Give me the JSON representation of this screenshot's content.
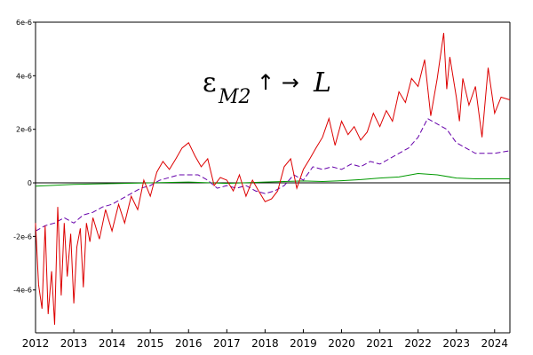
{
  "chart_data": {
    "type": "line",
    "title": "",
    "xlabel": "",
    "ylabel": "",
    "xlim": [
      2012.0,
      2024.4
    ],
    "ylim": [
      -5.6e-06,
      6e-06
    ],
    "yticks": [
      {
        "value": 6e-06,
        "label": "6e-6"
      },
      {
        "value": 4e-06,
        "label": "4e-6"
      },
      {
        "value": 2e-06,
        "label": "2e-6"
      },
      {
        "value": 0,
        "label": "0"
      },
      {
        "value": -2e-06,
        "label": "-2e-6"
      },
      {
        "value": -4e-06,
        "label": "-4e-6"
      }
    ],
    "xticks": [
      "2012",
      "2013",
      "2014",
      "2015",
      "2016",
      "2017",
      "2018",
      "2019",
      "2020",
      "2021",
      "2022",
      "2023",
      "2024"
    ],
    "annotation": {
      "symbol": "ε",
      "subscript": "M2",
      "arrow": "↑ →",
      "target": "L"
    },
    "grid": false,
    "legend": "none",
    "series": [
      {
        "color": "#dd0000",
        "style": "solid",
        "x": [
          2012.0,
          2012.08,
          2012.17,
          2012.25,
          2012.33,
          2012.42,
          2012.5,
          2012.58,
          2012.67,
          2012.75,
          2012.83,
          2012.92,
          2013.0,
          2013.08,
          2013.17,
          2013.25,
          2013.33,
          2013.42,
          2013.5,
          2013.67,
          2013.83,
          2014.0,
          2014.17,
          2014.33,
          2014.5,
          2014.67,
          2014.83,
          2015.0,
          2015.17,
          2015.33,
          2015.5,
          2015.67,
          2015.83,
          2016.0,
          2016.17,
          2016.33,
          2016.5,
          2016.67,
          2016.83,
          2017.0,
          2017.17,
          2017.33,
          2017.5,
          2017.67,
          2017.83,
          2018.0,
          2018.17,
          2018.33,
          2018.5,
          2018.67,
          2018.83,
          2019.0,
          2019.17,
          2019.33,
          2019.5,
          2019.67,
          2019.83,
          2020.0,
          2020.17,
          2020.33,
          2020.5,
          2020.67,
          2020.83,
          2021.0,
          2021.17,
          2021.33,
          2021.5,
          2021.67,
          2021.83,
          2022.0,
          2022.17,
          2022.33,
          2022.5,
          2022.67,
          2022.75,
          2022.83,
          2023.0,
          2023.08,
          2023.17,
          2023.33,
          2023.5,
          2023.67,
          2023.83,
          2024.0,
          2024.17,
          2024.4
        ],
        "y": [
          -1.5e-06,
          -3.8e-06,
          -4.7e-06,
          -1.6e-06,
          -4.9e-06,
          -3.3e-06,
          -5.3e-06,
          -9e-07,
          -4.2e-06,
          -1.5e-06,
          -3.5e-06,
          -1.9e-06,
          -4.5e-06,
          -2.4e-06,
          -1.7e-06,
          -3.9e-06,
          -1.5e-06,
          -2.2e-06,
          -1.3e-06,
          -2.1e-06,
          -1e-06,
          -1.8e-06,
          -8e-07,
          -1.5e-06,
          -5e-07,
          -1e-06,
          1e-07,
          -5e-07,
          4e-07,
          8e-07,
          5e-07,
          9e-07,
          1.3e-06,
          1.5e-06,
          1e-06,
          6e-07,
          9e-07,
          -1e-07,
          2e-07,
          1e-07,
          -3e-07,
          3e-07,
          -5e-07,
          1e-07,
          -3e-07,
          -7e-07,
          -6e-07,
          -3e-07,
          6e-07,
          9e-07,
          -2e-07,
          5e-07,
          9e-07,
          1.3e-06,
          1.7e-06,
          2.4e-06,
          1.4e-06,
          2.3e-06,
          1.8e-06,
          2.1e-06,
          1.6e-06,
          1.9e-06,
          2.6e-06,
          2.1e-06,
          2.7e-06,
          2.3e-06,
          3.4e-06,
          3e-06,
          3.9e-06,
          3.6e-06,
          4.6e-06,
          2.5e-06,
          3.9e-06,
          5.6e-06,
          3.5e-06,
          4.7e-06,
          3.2e-06,
          2.3e-06,
          3.9e-06,
          2.9e-06,
          3.6e-06,
          1.7e-06,
          4.3e-06,
          2.6e-06,
          3.2e-06,
          3.1e-06
        ]
      },
      {
        "color": "#6600aa",
        "style": "dashed",
        "x": [
          2012.0,
          2012.25,
          2012.5,
          2012.75,
          2013.0,
          2013.25,
          2013.5,
          2013.75,
          2014.0,
          2014.25,
          2014.5,
          2014.75,
          2015.0,
          2015.25,
          2015.5,
          2015.75,
          2016.0,
          2016.25,
          2016.5,
          2016.75,
          2017.0,
          2017.25,
          2017.5,
          2017.75,
          2018.0,
          2018.25,
          2018.5,
          2018.75,
          2019.0,
          2019.25,
          2019.5,
          2019.75,
          2020.0,
          2020.25,
          2020.5,
          2020.75,
          2021.0,
          2021.25,
          2021.5,
          2021.75,
          2022.0,
          2022.25,
          2022.5,
          2022.75,
          2023.0,
          2023.25,
          2023.5,
          2023.75,
          2024.0,
          2024.4
        ],
        "y": [
          -1.8e-06,
          -1.6e-06,
          -1.5e-06,
          -1.3e-06,
          -1.5e-06,
          -1.2e-06,
          -1.1e-06,
          -9e-07,
          -8e-07,
          -6e-07,
          -4e-07,
          -2e-07,
          -1e-07,
          1e-07,
          2e-07,
          3e-07,
          3e-07,
          3e-07,
          1e-07,
          -2e-07,
          -1e-07,
          -2e-07,
          -1e-07,
          -3e-07,
          -4e-07,
          -3e-07,
          -1e-07,
          3e-07,
          1e-07,
          6e-07,
          5e-07,
          6e-07,
          5e-07,
          7e-07,
          6e-07,
          8e-07,
          7e-07,
          9e-07,
          1.1e-06,
          1.3e-06,
          1.7e-06,
          2.4e-06,
          2.2e-06,
          2e-06,
          1.5e-06,
          1.3e-06,
          1.1e-06,
          1.1e-06,
          1.1e-06,
          1.2e-06
        ]
      },
      {
        "color": "#009900",
        "style": "solid",
        "x": [
          2012.0,
          2013.0,
          2014.0,
          2015.0,
          2016.0,
          2017.0,
          2018.0,
          2019.0,
          2019.5,
          2020.0,
          2020.5,
          2021.0,
          2021.5,
          2022.0,
          2022.5,
          2023.0,
          2023.5,
          2024.0,
          2024.4
        ],
        "y": [
          -1.2e-07,
          -6e-08,
          -3e-08,
          0.0,
          3e-08,
          -2e-08,
          3e-08,
          7e-08,
          5e-08,
          8e-08,
          1.2e-07,
          1.8e-07,
          2.2e-07,
          3.5e-07,
          3e-07,
          1.8e-07,
          1.5e-07,
          1.5e-07,
          1.5e-07
        ]
      }
    ]
  }
}
